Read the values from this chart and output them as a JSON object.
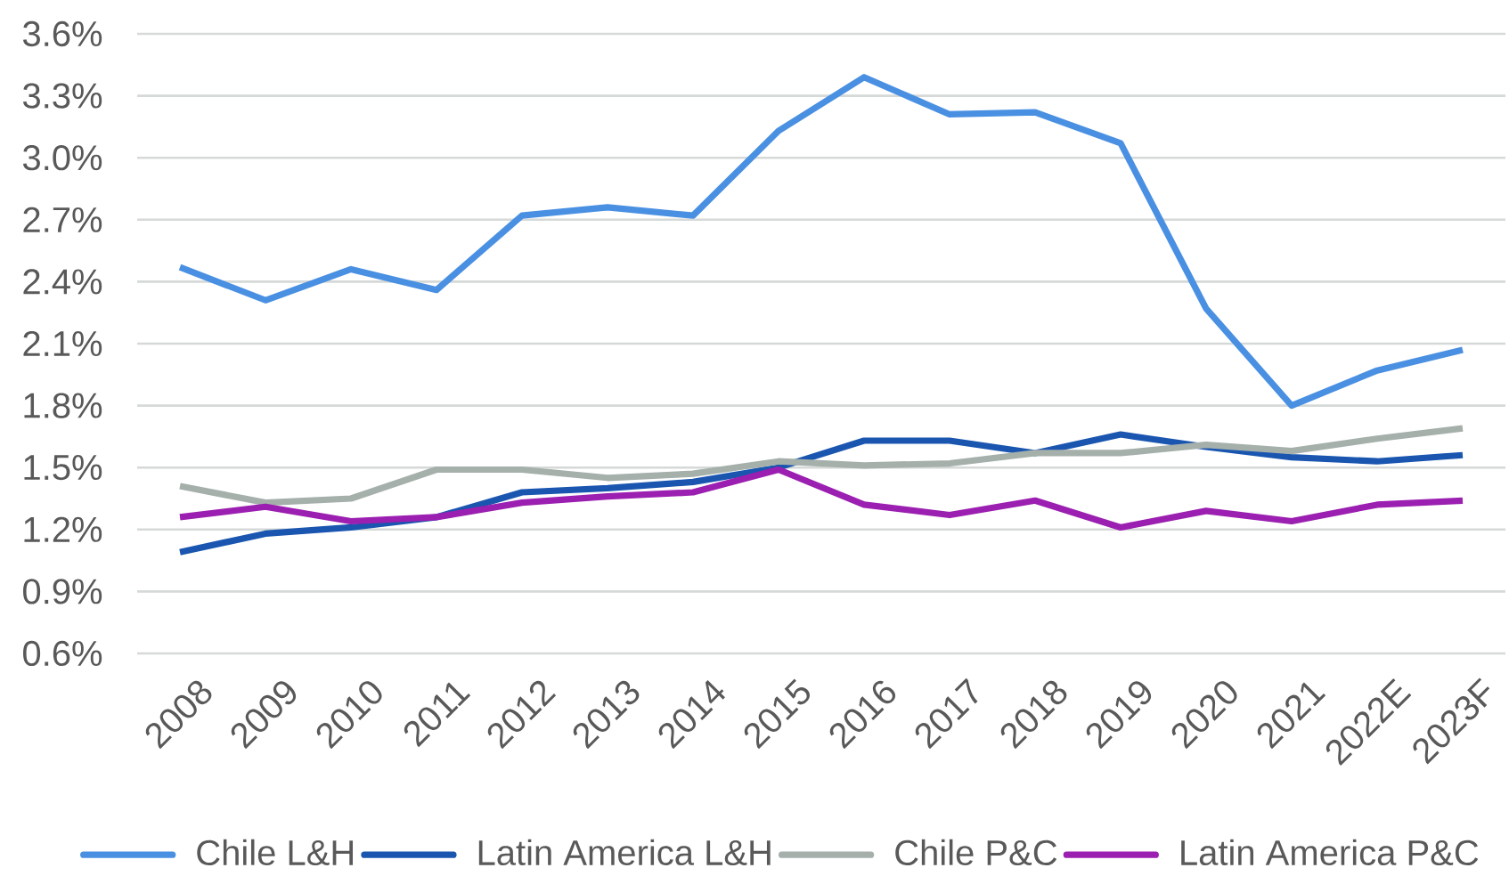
{
  "chart_data": {
    "type": "line",
    "categories": [
      "2008",
      "2009",
      "2010",
      "2011",
      "2012",
      "2013",
      "2014",
      "2015",
      "2016",
      "2017",
      "2018",
      "2019",
      "2020",
      "2021",
      "2022E",
      "2023F"
    ],
    "series": [
      {
        "name": "Chile L&H",
        "color": "#4a90e2",
        "values": [
          2.47,
          2.31,
          2.46,
          2.36,
          2.72,
          2.76,
          2.72,
          3.13,
          3.39,
          3.21,
          3.22,
          3.07,
          2.27,
          1.8,
          1.97,
          2.07
        ]
      },
      {
        "name": "Latin America L&H",
        "color": "#1a56b0",
        "values": [
          1.09,
          1.18,
          1.21,
          1.26,
          1.38,
          1.4,
          1.43,
          1.5,
          1.63,
          1.63,
          1.57,
          1.66,
          1.6,
          1.55,
          1.53,
          1.56
        ]
      },
      {
        "name": "Chile P&C",
        "color": "#a5b0ab",
        "values": [
          1.41,
          1.33,
          1.35,
          1.49,
          1.49,
          1.45,
          1.47,
          1.53,
          1.51,
          1.52,
          1.57,
          1.57,
          1.61,
          1.58,
          1.64,
          1.69
        ]
      },
      {
        "name": "Latin America P&C",
        "color": "#9b1fb0",
        "values": [
          1.26,
          1.31,
          1.24,
          1.26,
          1.33,
          1.36,
          1.38,
          1.49,
          1.32,
          1.27,
          1.34,
          1.21,
          1.29,
          1.24,
          1.32,
          1.34
        ]
      }
    ],
    "ylim": [
      0.6,
      3.6
    ],
    "yticks": [
      {
        "value": 0.6,
        "label": "0.6%"
      },
      {
        "value": 0.9,
        "label": "0.9%"
      },
      {
        "value": 1.2,
        "label": "1.2%"
      },
      {
        "value": 1.5,
        "label": "1.5%"
      },
      {
        "value": 1.8,
        "label": "1.8%"
      },
      {
        "value": 2.1,
        "label": "2.1%"
      },
      {
        "value": 2.4,
        "label": "2.4%"
      },
      {
        "value": 2.7,
        "label": "2.7%"
      },
      {
        "value": 3.0,
        "label": "3.0%"
      },
      {
        "value": 3.3,
        "label": "3.3%"
      },
      {
        "value": 3.6,
        "label": "3.6%"
      }
    ],
    "grid": "y",
    "legend": "bottom",
    "line_style": "solid"
  }
}
